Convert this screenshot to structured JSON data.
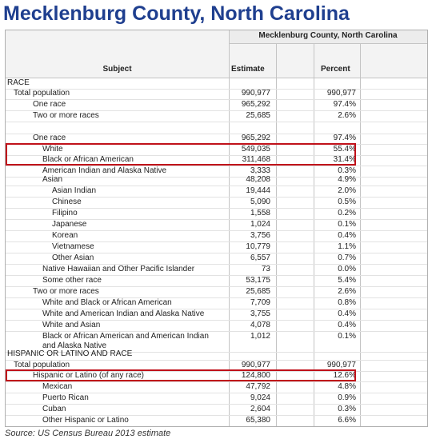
{
  "title": "Mecklenburg County, North Carolina",
  "table": {
    "group_header": "Mecklenburg County, North Carolina",
    "col_subject": "Subject",
    "col_estimate": "Estimate",
    "col_percent": "Percent",
    "rows": [
      {
        "label": "RACE",
        "estimate": "",
        "percent": ""
      },
      {
        "label": "Total population",
        "estimate": "990,977",
        "percent": "990,977"
      },
      {
        "label": "One race",
        "estimate": "965,292",
        "percent": "97.4%"
      },
      {
        "label": "Two or more races",
        "estimate": "25,685",
        "percent": "2.6%"
      },
      {
        "label": "",
        "estimate": "",
        "percent": ""
      },
      {
        "label": "One race",
        "estimate": "965,292",
        "percent": "97.4%"
      },
      {
        "label": "White",
        "estimate": "549,035",
        "percent": "55.4%"
      },
      {
        "label": "Black or African American",
        "estimate": "311,468",
        "percent": "31.4%"
      },
      {
        "label": "American Indian and Alaska Native",
        "estimate": "3,333",
        "percent": "0.3%"
      },
      {
        "label": "Asian",
        "estimate": "48,208",
        "percent": "4.9%"
      },
      {
        "label": "Asian Indian",
        "estimate": "19,444",
        "percent": "2.0%"
      },
      {
        "label": "Chinese",
        "estimate": "5,090",
        "percent": "0.5%"
      },
      {
        "label": "Filipino",
        "estimate": "1,558",
        "percent": "0.2%"
      },
      {
        "label": "Japanese",
        "estimate": "1,024",
        "percent": "0.1%"
      },
      {
        "label": "Korean",
        "estimate": "3,756",
        "percent": "0.4%"
      },
      {
        "label": "Vietnamese",
        "estimate": "10,779",
        "percent": "1.1%"
      },
      {
        "label": "Other Asian",
        "estimate": "6,557",
        "percent": "0.7%"
      },
      {
        "label": "Native Hawaiian and Other Pacific Islander",
        "estimate": "73",
        "percent": "0.0%"
      },
      {
        "label": "Some other race",
        "estimate": "53,175",
        "percent": "5.4%"
      },
      {
        "label": "Two or more races",
        "estimate": "25,685",
        "percent": "2.6%"
      },
      {
        "label": "White and Black or African American",
        "estimate": "7,709",
        "percent": "0.8%"
      },
      {
        "label": "White and American Indian and Alaska Native",
        "estimate": "3,755",
        "percent": "0.4%"
      },
      {
        "label": "White and Asian",
        "estimate": "4,078",
        "percent": "0.4%"
      },
      {
        "label": "Black or African American and American Indian and Alaska Native",
        "estimate": "1,012",
        "percent": "0.1%"
      },
      {
        "label": "HISPANIC OR LATINO AND RACE",
        "estimate": "",
        "percent": ""
      },
      {
        "label": "Total population",
        "estimate": "990,977",
        "percent": "990,977"
      },
      {
        "label": "Hispanic or Latino (of any race)",
        "estimate": "124,800",
        "percent": "12.6%"
      },
      {
        "label": "Mexican",
        "estimate": "47,792",
        "percent": "4.8%"
      },
      {
        "label": "Puerto Rican",
        "estimate": "9,024",
        "percent": "0.9%"
      },
      {
        "label": "Cuban",
        "estimate": "2,604",
        "percent": "0.3%"
      },
      {
        "label": "Other Hispanic or Latino",
        "estimate": "65,380",
        "percent": "6.6%"
      }
    ]
  },
  "source": "Source: US Census Bureau 2013 estimate",
  "colors": {
    "title": "#1f3f8f",
    "highlight": "#c0111a"
  }
}
